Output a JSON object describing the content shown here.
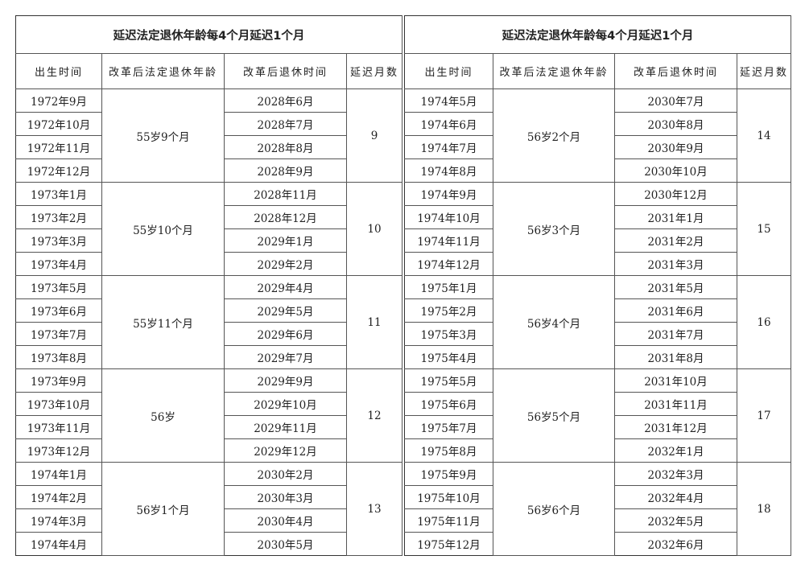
{
  "title": "延迟法定退休年龄每4个月延迟1个月",
  "headers": [
    "出生时间",
    "改革后法定退休年龄",
    "改革后退休时间",
    "延迟月数"
  ],
  "tables": [
    {
      "groups": [
        {
          "age": "55岁9个月",
          "delay": "9",
          "rows": [
            [
              "1972年9月",
              "2028年6月"
            ],
            [
              "1972年10月",
              "2028年7月"
            ],
            [
              "1972年11月",
              "2028年8月"
            ],
            [
              "1972年12月",
              "2028年9月"
            ]
          ]
        },
        {
          "age": "55岁10个月",
          "delay": "10",
          "rows": [
            [
              "1973年1月",
              "2028年11月"
            ],
            [
              "1973年2月",
              "2028年12月"
            ],
            [
              "1973年3月",
              "2029年1月"
            ],
            [
              "1973年4月",
              "2029年2月"
            ]
          ]
        },
        {
          "age": "55岁11个月",
          "delay": "11",
          "rows": [
            [
              "1973年5月",
              "2029年4月"
            ],
            [
              "1973年6月",
              "2029年5月"
            ],
            [
              "1973年7月",
              "2029年6月"
            ],
            [
              "1973年8月",
              "2029年7月"
            ]
          ]
        },
        {
          "age": "56岁",
          "delay": "12",
          "rows": [
            [
              "1973年9月",
              "2029年9月"
            ],
            [
              "1973年10月",
              "2029年10月"
            ],
            [
              "1973年11月",
              "2029年11月"
            ],
            [
              "1973年12月",
              "2029年12月"
            ]
          ]
        },
        {
          "age": "56岁1个月",
          "delay": "13",
          "rows": [
            [
              "1974年1月",
              "2030年2月"
            ],
            [
              "1974年2月",
              "2030年3月"
            ],
            [
              "1974年3月",
              "2030年4月"
            ],
            [
              "1974年4月",
              "2030年5月"
            ]
          ]
        }
      ]
    },
    {
      "groups": [
        {
          "age": "56岁2个月",
          "delay": "14",
          "rows": [
            [
              "1974年5月",
              "2030年7月"
            ],
            [
              "1974年6月",
              "2030年8月"
            ],
            [
              "1974年7月",
              "2030年9月"
            ],
            [
              "1974年8月",
              "2030年10月"
            ]
          ]
        },
        {
          "age": "56岁3个月",
          "delay": "15",
          "rows": [
            [
              "1974年9月",
              "2030年12月"
            ],
            [
              "1974年10月",
              "2031年1月"
            ],
            [
              "1974年11月",
              "2031年2月"
            ],
            [
              "1974年12月",
              "2031年3月"
            ]
          ]
        },
        {
          "age": "56岁4个月",
          "delay": "16",
          "rows": [
            [
              "1975年1月",
              "2031年5月"
            ],
            [
              "1975年2月",
              "2031年6月"
            ],
            [
              "1975年3月",
              "2031年7月"
            ],
            [
              "1975年4月",
              "2031年8月"
            ]
          ]
        },
        {
          "age": "56岁5个月",
          "delay": "17",
          "rows": [
            [
              "1975年5月",
              "2031年10月"
            ],
            [
              "1975年6月",
              "2031年11月"
            ],
            [
              "1975年7月",
              "2031年12月"
            ],
            [
              "1975年8月",
              "2032年1月"
            ]
          ]
        },
        {
          "age": "56岁6个月",
          "delay": "18",
          "rows": [
            [
              "1975年9月",
              "2032年3月"
            ],
            [
              "1975年10月",
              "2032年4月"
            ],
            [
              "1975年11月",
              "2032年5月"
            ],
            [
              "1975年12月",
              "2032年6月"
            ]
          ]
        }
      ]
    }
  ]
}
